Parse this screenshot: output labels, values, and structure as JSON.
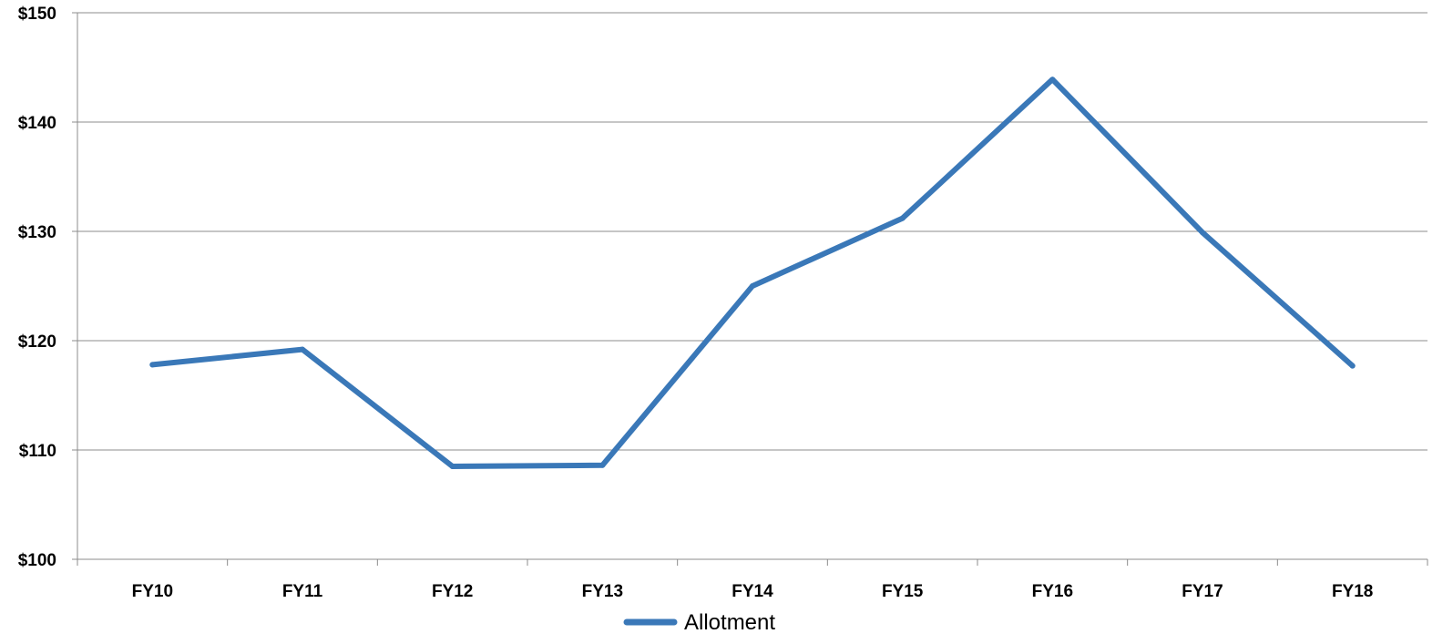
{
  "chart_data": {
    "type": "line",
    "title": "",
    "xlabel": "",
    "ylabel": "",
    "categories": [
      "FY10",
      "FY11",
      "FY12",
      "FY13",
      "FY14",
      "FY15",
      "FY16",
      "FY17",
      "FY18"
    ],
    "series": [
      {
        "name": "Allotment",
        "color": "#3a78b8",
        "values": [
          117.8,
          119.2,
          108.5,
          108.6,
          125.0,
          131.2,
          143.9,
          129.9,
          117.7
        ]
      }
    ],
    "ylim": [
      100,
      150
    ],
    "yticks": [
      100,
      110,
      120,
      130,
      140,
      150
    ],
    "ytick_labels": [
      "$100",
      "$110",
      "$120",
      "$130",
      "$140",
      "$150"
    ],
    "grid": "horizontal",
    "legend_position": "bottom-center"
  }
}
